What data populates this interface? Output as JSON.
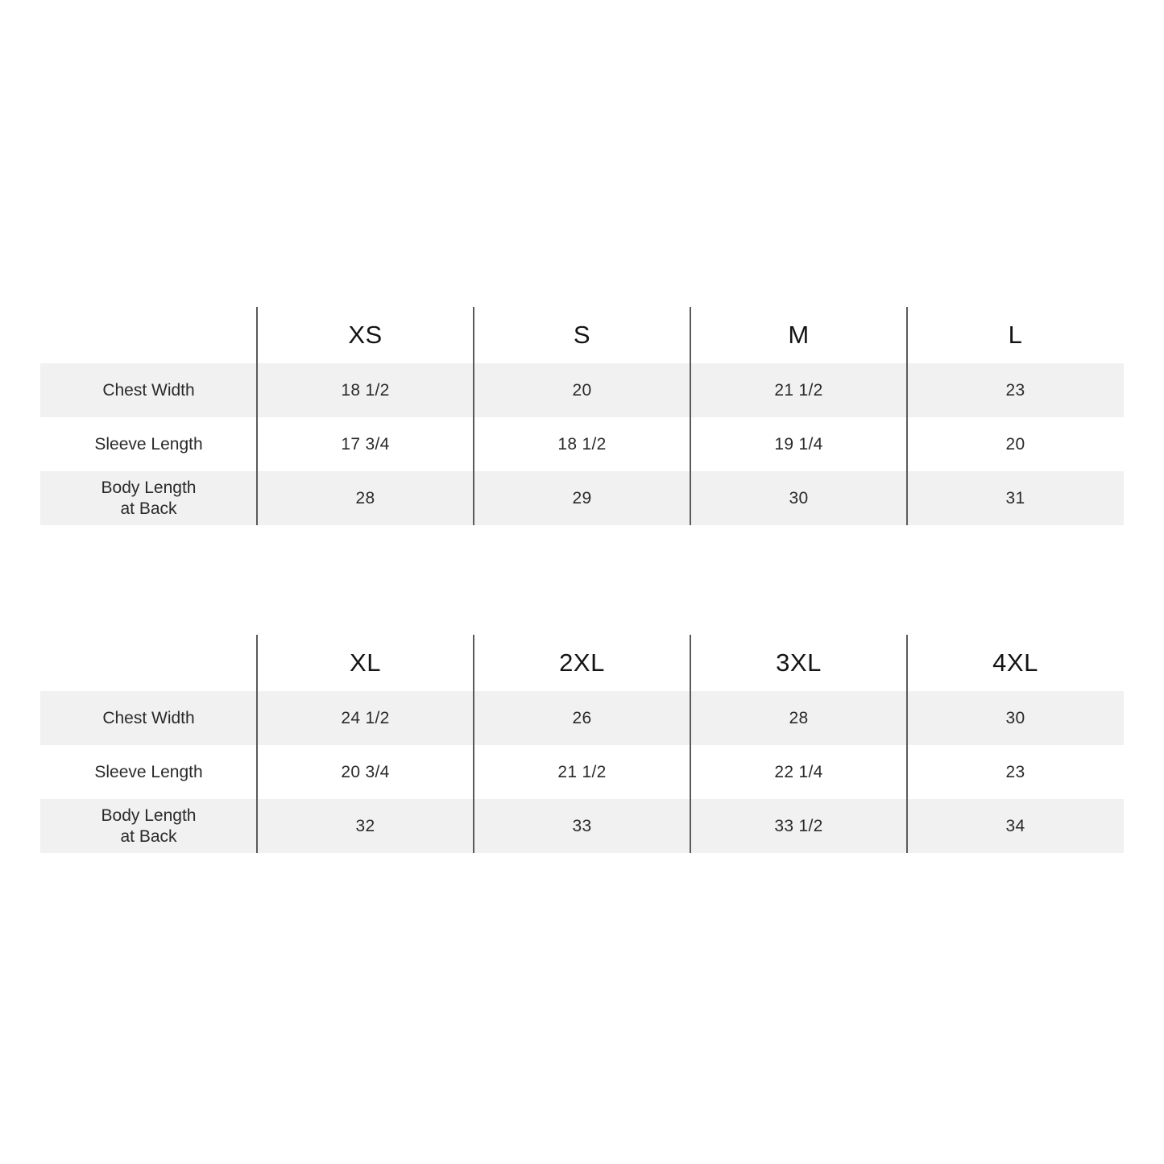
{
  "colors": {
    "page_background": "#ffffff",
    "row_shade": "#f0f1f0",
    "divider": "#5a5a5c",
    "header_text": "#141415",
    "body_text": "#2a2a2c"
  },
  "chart_data": [
    {
      "type": "table",
      "size_headers": [
        "XS",
        "S",
        "M",
        "L"
      ],
      "row_labels": [
        [
          "Chest Width"
        ],
        [
          "Sleeve Length"
        ],
        [
          "Body Length",
          "at Back"
        ]
      ],
      "values": [
        [
          "18 1/2",
          "20",
          "21 1/2",
          "23"
        ],
        [
          "17 3/4",
          "18 1/2",
          "19 1/4",
          "20"
        ],
        [
          "28",
          "29",
          "30",
          "31"
        ]
      ]
    },
    {
      "type": "table",
      "size_headers": [
        "XL",
        "2XL",
        "3XL",
        "4XL"
      ],
      "row_labels": [
        [
          "Chest Width"
        ],
        [
          "Sleeve Length"
        ],
        [
          "Body Length",
          "at Back"
        ]
      ],
      "values": [
        [
          "24 1/2",
          "26",
          "28",
          "30"
        ],
        [
          "20 3/4",
          "21 1/2",
          "22 1/4",
          "23"
        ],
        [
          "32",
          "33",
          "33 1/2",
          "34"
        ]
      ]
    }
  ]
}
